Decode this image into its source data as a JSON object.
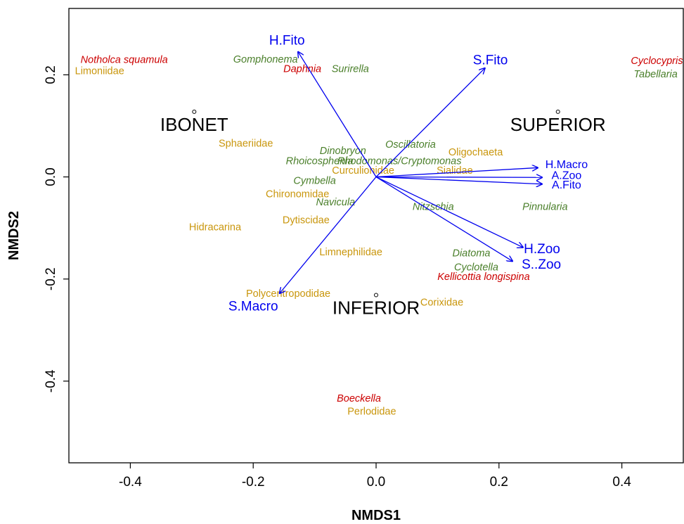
{
  "chart_data": {
    "type": "scatter",
    "title": "",
    "xlabel": "NMDS1",
    "ylabel": "NMDS2",
    "xlim": [
      -0.5,
      0.5
    ],
    "ylim": [
      -0.56,
      0.33
    ],
    "xticks": [
      -0.4,
      -0.2,
      0.0,
      0.2,
      0.4
    ],
    "xtick_labels": [
      "-0.4",
      "-0.2",
      "0.0",
      "0.2",
      "0.4"
    ],
    "yticks": [
      -0.4,
      -0.2,
      0.0,
      0.2
    ],
    "ytick_labels": [
      "-0.4",
      "-0.2",
      "0.0",
      "0.2"
    ],
    "grid": false,
    "legend": "none",
    "colors": {
      "vectors": "#0000ee",
      "zooplankton": "#cc0000",
      "phytoplankton": "#4a7f2a",
      "macroinvertebrates": "#c9960c",
      "sites": "#000000"
    },
    "sites": [
      {
        "label": "IBONET",
        "x": -0.296,
        "y": 0.089
      },
      {
        "label": "SUPERIOR",
        "x": 0.296,
        "y": 0.089
      },
      {
        "label": "INFERIOR",
        "x": 0.0,
        "y": -0.27
      }
    ],
    "vectors": [
      {
        "label": "H.Fito",
        "x": -0.127,
        "y": 0.245,
        "lx": -0.145,
        "ly": 0.269,
        "size": "large"
      },
      {
        "label": "S.Fito",
        "x": 0.177,
        "y": 0.213,
        "lx": 0.186,
        "ly": 0.23,
        "size": "large"
      },
      {
        "label": "H.Macro",
        "x": 0.263,
        "y": 0.018,
        "lx": 0.31,
        "ly": 0.024,
        "size": "small"
      },
      {
        "label": "A.Zoo",
        "x": 0.27,
        "y": -0.001,
        "lx": 0.31,
        "ly": 0.003,
        "size": "small"
      },
      {
        "label": "A.Fito",
        "x": 0.27,
        "y": -0.014,
        "lx": 0.31,
        "ly": -0.016,
        "size": "small"
      },
      {
        "label": "H.Zoo",
        "x": 0.239,
        "y": -0.138,
        "lx": 0.27,
        "ly": -0.14,
        "size": "large"
      },
      {
        "label": "S..Zoo",
        "x": 0.222,
        "y": -0.165,
        "lx": 0.269,
        "ly": -0.17,
        "size": "large"
      },
      {
        "label": "S.Macro",
        "x": -0.157,
        "y": -0.228,
        "lx": -0.2,
        "ly": -0.252,
        "size": "large"
      }
    ],
    "species": [
      {
        "label": "Notholca squamula",
        "group": "zooplankton",
        "x": -0.41,
        "y": 0.23
      },
      {
        "label": "Daphnia",
        "group": "zooplankton",
        "x": -0.12,
        "y": 0.212
      },
      {
        "label": "Cyclocypris",
        "group": "zooplankton",
        "x": 0.457,
        "y": 0.228
      },
      {
        "label": "Kellicottia longispina",
        "group": "zooplankton",
        "x": 0.175,
        "y": -0.195
      },
      {
        "label": "Boeckella",
        "group": "zooplankton",
        "x": -0.028,
        "y": -0.433
      },
      {
        "label": "Gomphonema",
        "group": "phytoplankton",
        "x": -0.18,
        "y": 0.231
      },
      {
        "label": "Surirella",
        "group": "phytoplankton",
        "x": -0.042,
        "y": 0.212
      },
      {
        "label": "Tabellaria",
        "group": "phytoplankton",
        "x": 0.455,
        "y": 0.202
      },
      {
        "label": "Oscillatoria",
        "group": "phytoplankton",
        "x": 0.056,
        "y": 0.064
      },
      {
        "label": "Dinobryon",
        "group": "phytoplankton",
        "x": -0.054,
        "y": 0.052
      },
      {
        "label": "Rhoicosphenia",
        "group": "phytoplankton",
        "x": -0.092,
        "y": 0.032
      },
      {
        "label": "Rhodomonas/Cryptomonas",
        "group": "phytoplankton",
        "x": 0.038,
        "y": 0.032
      },
      {
        "label": "Cymbella",
        "group": "phytoplankton",
        "x": -0.1,
        "y": -0.007
      },
      {
        "label": "Navicula",
        "group": "phytoplankton",
        "x": -0.066,
        "y": -0.049
      },
      {
        "label": "Nitzschia",
        "group": "phytoplankton",
        "x": 0.093,
        "y": -0.058
      },
      {
        "label": "Pinnularia",
        "group": "phytoplankton",
        "x": 0.275,
        "y": -0.058
      },
      {
        "label": "Diatoma",
        "group": "phytoplankton",
        "x": 0.155,
        "y": -0.149
      },
      {
        "label": "Cyclotella",
        "group": "phytoplankton",
        "x": 0.163,
        "y": -0.176
      },
      {
        "label": "Limoniidae",
        "group": "macroinvertebrates",
        "x": -0.45,
        "y": 0.208
      },
      {
        "label": "Sphaeriidae",
        "group": "macroinvertebrates",
        "x": -0.212,
        "y": 0.066
      },
      {
        "label": "Oligochaeta",
        "group": "macroinvertebrates",
        "x": 0.162,
        "y": 0.049
      },
      {
        "label": "Curculionidae",
        "group": "macroinvertebrates",
        "x": -0.021,
        "y": 0.013
      },
      {
        "label": "Sialidae",
        "group": "macroinvertebrates",
        "x": 0.128,
        "y": 0.013
      },
      {
        "label": "Chironomidae",
        "group": "macroinvertebrates",
        "x": -0.128,
        "y": -0.033
      },
      {
        "label": "Dytiscidae",
        "group": "macroinvertebrates",
        "x": -0.114,
        "y": -0.084
      },
      {
        "label": "Hidracarina",
        "group": "macroinvertebrates",
        "x": -0.262,
        "y": -0.098
      },
      {
        "label": "Limnephilidae",
        "group": "macroinvertebrates",
        "x": -0.041,
        "y": -0.147
      },
      {
        "label": "Polycentropodidae",
        "group": "macroinvertebrates",
        "x": -0.143,
        "y": -0.228
      },
      {
        "label": "Corixidae",
        "group": "macroinvertebrates",
        "x": 0.107,
        "y": -0.245
      },
      {
        "label": "Perlodidae",
        "group": "macroinvertebrates",
        "x": -0.007,
        "y": -0.459
      }
    ]
  }
}
